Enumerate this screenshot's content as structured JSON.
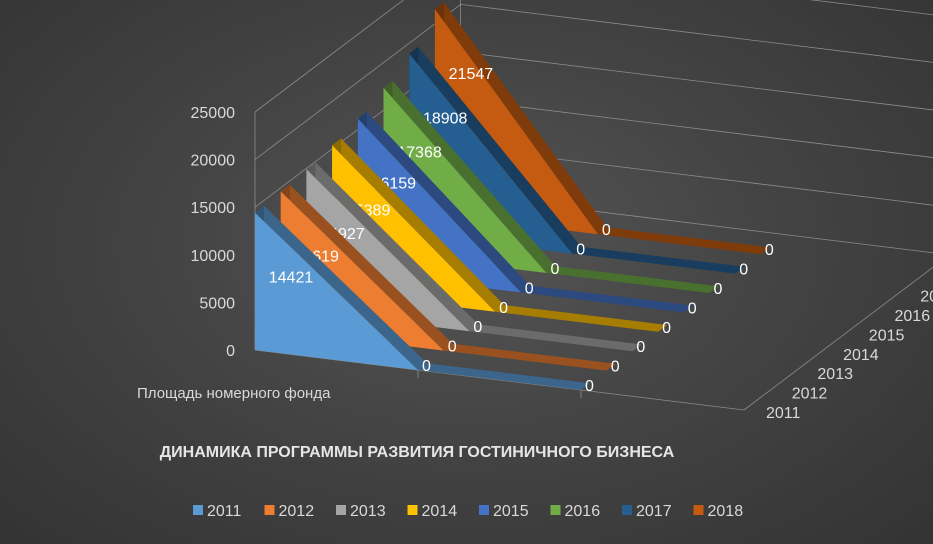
{
  "chart_data": {
    "type": "area",
    "title": "ДИНАМИКА ПРОГРАММЫ  РАЗВИТИЯ ГОСТИНИЧНОГО БИЗНЕСА",
    "categories": [
      "Площадь номерного фонда",
      "",
      ""
    ],
    "ylim": [
      0,
      25000
    ],
    "yticks": [
      0,
      5000,
      10000,
      15000,
      20000,
      25000
    ],
    "legend_position": "bottom",
    "series": [
      {
        "name": "2011",
        "color": "#5B9BD5",
        "values": [
          14421,
          0,
          0
        ]
      },
      {
        "name": "2012",
        "color": "#ED7D31",
        "values": [
          14619,
          0,
          0
        ]
      },
      {
        "name": "2013",
        "color": "#A5A5A5",
        "values": [
          14927,
          0,
          0
        ]
      },
      {
        "name": "2014",
        "color": "#FFC000",
        "values": [
          15389,
          0,
          0
        ]
      },
      {
        "name": "2015",
        "color": "#4472C4",
        "values": [
          16159,
          0,
          0
        ]
      },
      {
        "name": "2016",
        "color": "#70AD47",
        "values": [
          17368,
          0,
          0
        ]
      },
      {
        "name": "2017",
        "color": "#255E91",
        "values": [
          18908,
          0,
          0
        ]
      },
      {
        "name": "2018",
        "color": "#C55A11",
        "values": [
          21547,
          0,
          0
        ]
      }
    ]
  }
}
